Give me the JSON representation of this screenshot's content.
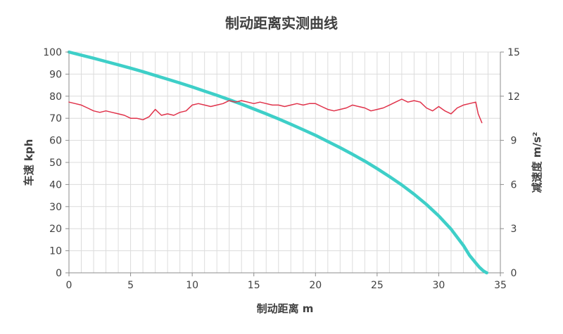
{
  "chart_data": {
    "type": "line",
    "title": "制动距离实测曲线",
    "xlabel": "制动距离 m",
    "ylabel_left": "车速 kph",
    "ylabel_right": "减速度 m/s²",
    "xlim": [
      0,
      35
    ],
    "ylim_left": [
      0,
      100
    ],
    "ylim_right": [
      0,
      15
    ],
    "x_ticks": [
      0,
      5,
      10,
      15,
      20,
      25,
      30,
      35
    ],
    "y_left_ticks": [
      0,
      10,
      20,
      30,
      40,
      50,
      60,
      70,
      80,
      90,
      100
    ],
    "y_right_ticks": [
      0,
      3,
      6,
      9,
      12,
      15
    ],
    "grid": true,
    "colors": {
      "speed": "#3ecfc8",
      "decel": "#e0324a",
      "grid": "#dcdcdc",
      "axis": "#8c8c8c"
    },
    "series": [
      {
        "axis": "left",
        "x": [
          0,
          1,
          2,
          3,
          4,
          5,
          6,
          7,
          8,
          9,
          10,
          11,
          12,
          13,
          14,
          15,
          16,
          17,
          18,
          19,
          20,
          21,
          22,
          23,
          24,
          25,
          26,
          27,
          28,
          29,
          30,
          31,
          32,
          32.5,
          33,
          33.3,
          33.6,
          33.8,
          33.9
        ],
        "values": [
          100,
          98.6,
          97.2,
          95.7,
          94.2,
          92.7,
          91.1,
          89.4,
          87.7,
          86.0,
          84.2,
          82.3,
          80.4,
          78.4,
          76.4,
          74.2,
          72.0,
          69.7,
          67.3,
          64.8,
          62.3,
          59.5,
          56.7,
          53.7,
          50.6,
          47.2,
          43.6,
          39.8,
          35.6,
          31.0,
          25.8,
          19.8,
          12.4,
          7.9,
          4.5,
          2.5,
          1.0,
          0.3,
          0
        ]
      },
      {
        "axis": "right",
        "x": [
          0,
          0.5,
          1,
          1.5,
          2,
          2.5,
          3,
          3.5,
          4,
          4.5,
          5,
          5.5,
          6,
          6.5,
          7,
          7.5,
          8,
          8.5,
          9,
          9.5,
          10,
          10.5,
          11,
          11.5,
          12,
          12.5,
          13,
          13.5,
          14,
          14.5,
          15,
          15.5,
          16,
          16.5,
          17,
          17.5,
          18,
          18.5,
          19,
          19.5,
          20,
          20.5,
          21,
          21.5,
          22,
          22.5,
          23,
          23.5,
          24,
          24.5,
          25,
          25.5,
          26,
          26.5,
          27,
          27.5,
          28,
          28.5,
          29,
          29.5,
          30,
          30.5,
          31,
          31.5,
          32,
          32.5,
          33,
          33.2,
          33.5
        ],
        "values": [
          11.6,
          11.5,
          11.4,
          11.2,
          11.0,
          10.9,
          11.0,
          10.9,
          10.8,
          10.7,
          10.5,
          10.5,
          10.4,
          10.6,
          11.1,
          10.7,
          10.8,
          10.7,
          10.9,
          11.0,
          11.4,
          11.5,
          11.4,
          11.3,
          11.4,
          11.5,
          11.7,
          11.6,
          11.7,
          11.6,
          11.5,
          11.6,
          11.5,
          11.4,
          11.4,
          11.3,
          11.4,
          11.5,
          11.4,
          11.5,
          11.5,
          11.3,
          11.1,
          11.0,
          11.1,
          11.2,
          11.4,
          11.3,
          11.2,
          11.0,
          11.1,
          11.2,
          11.4,
          11.6,
          11.8,
          11.6,
          11.7,
          11.6,
          11.2,
          11.0,
          11.3,
          11.0,
          10.8,
          11.2,
          11.4,
          11.5,
          11.6,
          10.8,
          10.2
        ]
      }
    ]
  }
}
